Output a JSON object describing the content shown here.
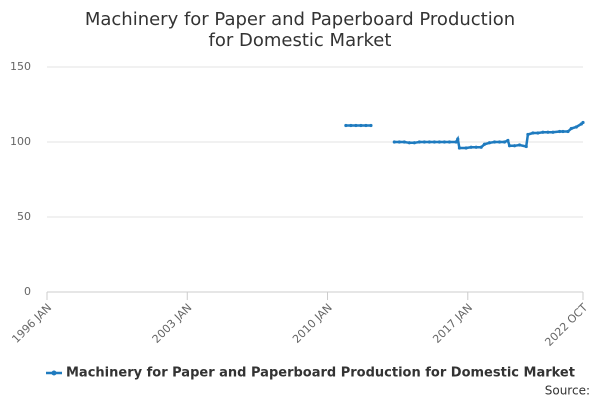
{
  "chart_data": {
    "type": "line",
    "title": "Machinery for Paper and Paperboard Production for Domestic Market",
    "source": "Source:",
    "xlim": [
      "1996-01",
      "2022-10"
    ],
    "xticks": [
      {
        "value": "1996-01",
        "label": "1996 JAN"
      },
      {
        "value": "2003-01",
        "label": "2003 JAN"
      },
      {
        "value": "2010-01",
        "label": "2010 JAN"
      },
      {
        "value": "2017-01",
        "label": "2017 JAN"
      },
      {
        "value": "2022-10",
        "label": "2022 OCT"
      }
    ],
    "ylim": [
      0,
      150
    ],
    "yticks": [
      0,
      50,
      100,
      150
    ],
    "grid": true,
    "legend": "bottom",
    "x": [
      "2010-12",
      "2011-03",
      "2011-06",
      "2011-09",
      "2011-12",
      "2012-03",
      "2012-06",
      "2013-05",
      "2013-08",
      "2013-11",
      "2014-02",
      "2014-05",
      "2014-08",
      "2014-11",
      "2015-02",
      "2015-05",
      "2015-08",
      "2015-11",
      "2016-02",
      "2016-06",
      "2016-07",
      "2016-08",
      "2016-12",
      "2017-03",
      "2017-06",
      "2017-09",
      "2017-11",
      "2018-02",
      "2018-05",
      "2018-08",
      "2018-11",
      "2019-01",
      "2019-02",
      "2019-05",
      "2019-08",
      "2019-12",
      "2020-01",
      "2020-04",
      "2020-07",
      "2020-10",
      "2021-01",
      "2021-04",
      "2021-08",
      "2021-10",
      "2022-01",
      "2022-03",
      "2022-06",
      "2022-09",
      "2022-10"
    ],
    "series": [
      {
        "name": "Machinery for Paper and Paperboard Production for Domestic Market",
        "color": "#1f7bbf",
        "values": [
          111,
          111,
          111,
          111,
          111,
          111,
          null,
          100,
          100,
          100,
          99.5,
          99.5,
          100,
          100,
          100,
          100,
          100,
          100,
          100,
          100,
          102,
          96,
          96,
          96.5,
          96.5,
          96.5,
          98.5,
          99.5,
          100,
          100,
          100,
          101,
          97.5,
          97.5,
          98,
          97,
          105,
          106,
          106,
          106.5,
          106.5,
          106.5,
          107,
          107,
          107,
          109,
          110,
          112,
          113
        ]
      }
    ]
  }
}
